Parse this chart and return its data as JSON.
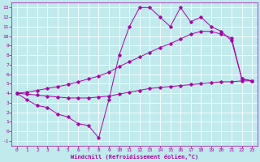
{
  "xlabel": "Windchill (Refroidissement éolien,°C)",
  "bg_color": "#c0eaec",
  "line_color": "#aa00aa",
  "grid_color": "#ffffff",
  "xlim": [
    -0.5,
    23.5
  ],
  "ylim": [
    -1.5,
    13.5
  ],
  "xticks": [
    0,
    1,
    2,
    3,
    4,
    5,
    6,
    7,
    8,
    9,
    10,
    11,
    12,
    13,
    14,
    15,
    16,
    17,
    18,
    19,
    20,
    21,
    22,
    23
  ],
  "yticks": [
    -1,
    0,
    1,
    2,
    3,
    4,
    5,
    6,
    7,
    8,
    9,
    10,
    11,
    12,
    13
  ],
  "line1_x": [
    0,
    1,
    2,
    3,
    4,
    5,
    6,
    7,
    8,
    9,
    10,
    11,
    12,
    13,
    14,
    15,
    16,
    17,
    18,
    19,
    20,
    21,
    22,
    23
  ],
  "line1_y": [
    4.0,
    3.3,
    2.7,
    2.5,
    1.8,
    1.5,
    0.8,
    0.6,
    -0.7,
    3.3,
    8.0,
    11.0,
    13.0,
    13.0,
    12.0,
    11.0,
    13.0,
    11.5,
    12.0,
    11.0,
    10.5,
    9.5,
    5.5,
    5.3
  ],
  "line2_x": [
    0,
    1,
    2,
    3,
    4,
    5,
    6,
    7,
    8,
    9,
    10,
    11,
    12,
    13,
    14,
    15,
    16,
    17,
    18,
    19,
    20,
    21,
    22,
    23
  ],
  "line2_y": [
    4.0,
    4.1,
    4.3,
    4.5,
    4.7,
    4.9,
    5.2,
    5.5,
    5.8,
    6.2,
    6.8,
    7.3,
    7.8,
    8.3,
    8.8,
    9.2,
    9.7,
    10.2,
    10.5,
    10.5,
    10.2,
    9.8,
    5.5,
    5.3
  ],
  "line3_x": [
    0,
    1,
    2,
    3,
    4,
    5,
    6,
    7,
    8,
    9,
    10,
    11,
    12,
    13,
    14,
    15,
    16,
    17,
    18,
    19,
    20,
    21,
    22,
    23
  ],
  "line3_y": [
    4.0,
    3.9,
    3.8,
    3.7,
    3.6,
    3.5,
    3.5,
    3.5,
    3.6,
    3.7,
    3.9,
    4.1,
    4.3,
    4.5,
    4.6,
    4.7,
    4.8,
    4.9,
    5.0,
    5.1,
    5.2,
    5.2,
    5.3,
    5.3
  ],
  "marker": "D",
  "markersize": 1.8,
  "linewidth": 0.7,
  "tick_fontsize": 4.5,
  "xlabel_fontsize": 5.0
}
